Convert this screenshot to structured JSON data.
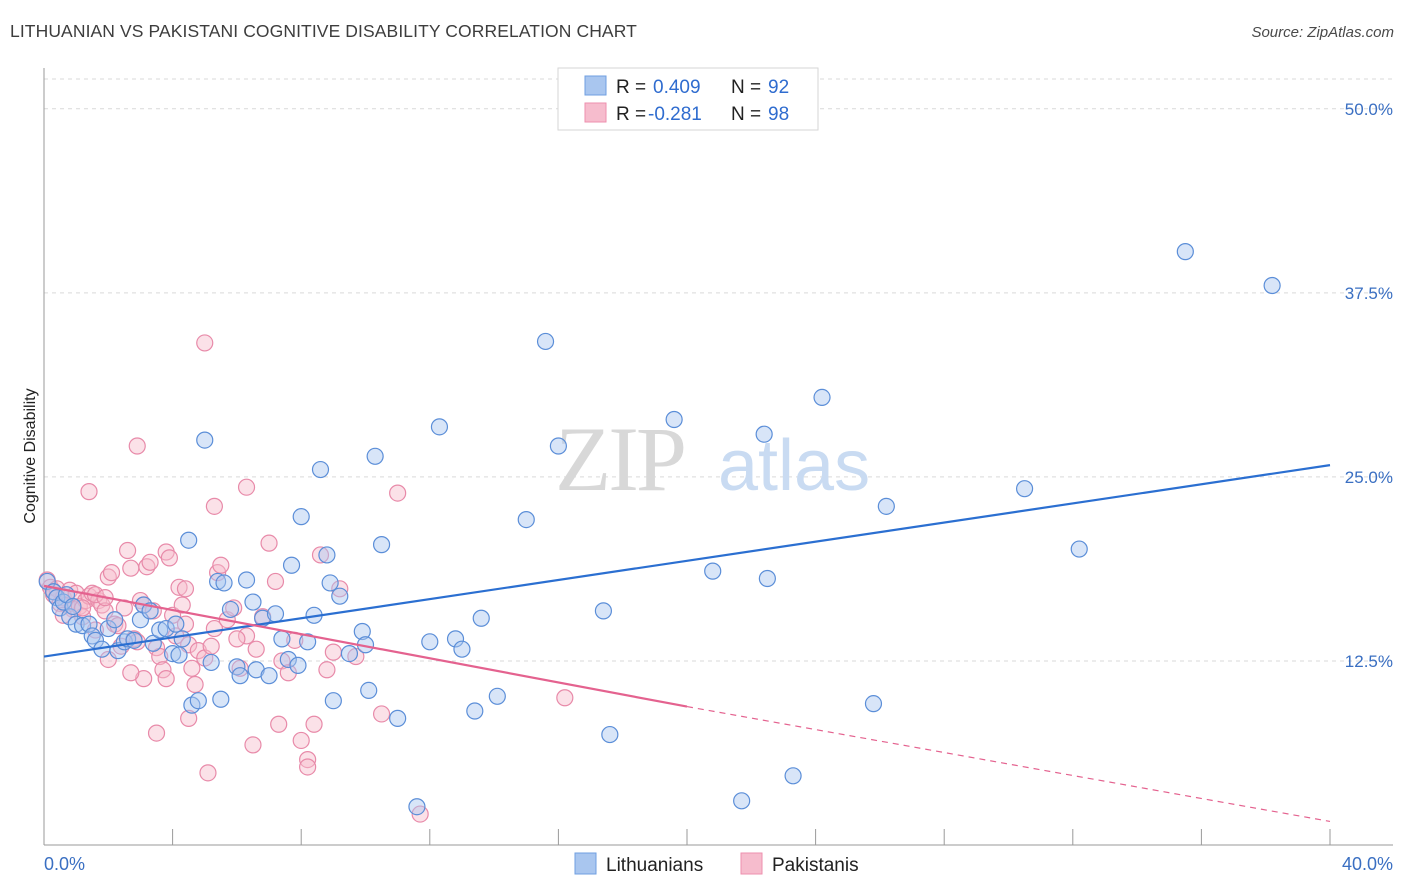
{
  "title": "LITHUANIAN VS PAKISTANI COGNITIVE DISABILITY CORRELATION CHART",
  "source": "Source: ZipAtlas.com",
  "watermark": {
    "zip": "ZIP",
    "atlas": "atlas"
  },
  "legend_top": [
    {
      "r_label": "R =",
      "r_value": "0.409",
      "n_label": "N =",
      "n_value": "92",
      "color": "#6f9fe0"
    },
    {
      "r_label": "R =",
      "r_value": "-0.281",
      "n_label": "N =",
      "n_value": "98",
      "color": "#ee8fae"
    }
  ],
  "legend_bottom": [
    {
      "label": "Lithuanians",
      "color": "#6f9fe0"
    },
    {
      "label": "Pakistanis",
      "color": "#ee8fae"
    }
  ],
  "colors": {
    "lithuanian_fill": "#a9c6ef",
    "lithuanian_stroke": "#5b8ed8",
    "lithuanian_line": "#2b6fd1",
    "pakistani_fill": "#f6bccd",
    "pakistani_stroke": "#e88aa9",
    "pakistani_line": "#e4628f",
    "grid": "#d9d9d9",
    "tick_label": "#3a6fc2"
  },
  "chart_data": {
    "type": "scatter",
    "title": "LITHUANIAN VS PAKISTANI COGNITIVE DISABILITY CORRELATION CHART",
    "xlabel": "",
    "ylabel": "Cognitive Disability",
    "xlim": [
      0,
      40
    ],
    "ylim": [
      0,
      52.5
    ],
    "x_tick_labels": [
      "0.0%",
      "40.0%"
    ],
    "y_ticks": [
      12.5,
      25.0,
      37.5,
      50.0
    ],
    "y_tick_labels": [
      "12.5%",
      "25.0%",
      "37.5%",
      "50.0%"
    ],
    "grid": "horizontal dashed",
    "legend_position": "top-center",
    "series": [
      {
        "name": "Lithuanians",
        "R": 0.409,
        "N": 92,
        "trend": {
          "x": [
            0,
            40
          ],
          "y": [
            12.8,
            25.8
          ]
        },
        "points": [
          [
            0.1,
            17.9
          ],
          [
            0.3,
            17.2
          ],
          [
            0.4,
            16.8
          ],
          [
            0.5,
            16.1
          ],
          [
            0.6,
            16.5
          ],
          [
            0.7,
            17.0
          ],
          [
            0.8,
            15.5
          ],
          [
            0.9,
            16.2
          ],
          [
            1.0,
            15.0
          ],
          [
            1.2,
            14.9
          ],
          [
            1.4,
            15.0
          ],
          [
            1.5,
            14.2
          ],
          [
            1.6,
            13.9
          ],
          [
            1.8,
            13.3
          ],
          [
            2.0,
            14.7
          ],
          [
            2.2,
            15.3
          ],
          [
            2.3,
            13.2
          ],
          [
            2.5,
            13.8
          ],
          [
            2.6,
            14.0
          ],
          [
            2.8,
            13.9
          ],
          [
            3.0,
            15.3
          ],
          [
            3.1,
            16.3
          ],
          [
            3.3,
            15.9
          ],
          [
            3.4,
            13.7
          ],
          [
            3.6,
            14.6
          ],
          [
            3.8,
            14.7
          ],
          [
            4.0,
            13.0
          ],
          [
            4.2,
            12.9
          ],
          [
            4.3,
            14.0
          ],
          [
            4.5,
            20.7
          ],
          [
            4.6,
            9.5
          ],
          [
            4.8,
            9.8
          ],
          [
            5.0,
            27.5
          ],
          [
            5.2,
            12.4
          ],
          [
            5.4,
            17.9
          ],
          [
            5.5,
            9.9
          ],
          [
            5.6,
            17.8
          ],
          [
            5.8,
            16.0
          ],
          [
            6.0,
            12.1
          ],
          [
            6.1,
            11.5
          ],
          [
            6.3,
            18.0
          ],
          [
            6.5,
            16.5
          ],
          [
            6.6,
            11.9
          ],
          [
            6.8,
            15.4
          ],
          [
            7.0,
            11.5
          ],
          [
            7.2,
            15.7
          ],
          [
            7.4,
            14.0
          ],
          [
            7.6,
            12.6
          ],
          [
            7.7,
            19.0
          ],
          [
            7.9,
            12.2
          ],
          [
            8.0,
            22.3
          ],
          [
            8.2,
            13.8
          ],
          [
            8.4,
            15.6
          ],
          [
            8.6,
            25.5
          ],
          [
            8.8,
            19.7
          ],
          [
            8.9,
            17.8
          ],
          [
            9.0,
            9.8
          ],
          [
            9.2,
            16.9
          ],
          [
            9.5,
            13.0
          ],
          [
            9.9,
            14.5
          ],
          [
            10.0,
            13.6
          ],
          [
            10.1,
            10.5
          ],
          [
            10.3,
            26.4
          ],
          [
            10.5,
            20.4
          ],
          [
            11.0,
            8.6
          ],
          [
            11.6,
            2.6
          ],
          [
            12.0,
            13.8
          ],
          [
            12.3,
            28.4
          ],
          [
            12.8,
            14.0
          ],
          [
            13.0,
            13.3
          ],
          [
            13.4,
            9.1
          ],
          [
            13.6,
            15.4
          ],
          [
            14.1,
            10.1
          ],
          [
            15.0,
            22.1
          ],
          [
            15.6,
            34.2
          ],
          [
            16.0,
            27.1
          ],
          [
            17.4,
            15.9
          ],
          [
            17.6,
            7.5
          ],
          [
            19.6,
            28.9
          ],
          [
            20.8,
            18.6
          ],
          [
            21.7,
            3.0
          ],
          [
            22.4,
            27.9
          ],
          [
            23.3,
            4.7
          ],
          [
            24.2,
            30.4
          ],
          [
            25.8,
            9.6
          ],
          [
            26.2,
            23.0
          ],
          [
            30.5,
            24.2
          ],
          [
            32.2,
            20.1
          ],
          [
            35.5,
            40.3
          ],
          [
            38.2,
            38.0
          ],
          [
            22.5,
            18.1
          ],
          [
            4.1,
            15.0
          ]
        ]
      },
      {
        "name": "Pakistanis",
        "R": -0.281,
        "N": 98,
        "trend": {
          "x": [
            0,
            20
          ],
          "y": [
            17.6,
            9.4
          ]
        },
        "trend_dashed": {
          "x": [
            20,
            40
          ],
          "y": [
            9.4,
            1.6
          ]
        },
        "points": [
          [
            0.1,
            18.0
          ],
          [
            0.2,
            17.5
          ],
          [
            0.3,
            17.0
          ],
          [
            0.4,
            17.4
          ],
          [
            0.5,
            16.4
          ],
          [
            0.6,
            16.8
          ],
          [
            0.7,
            16.3
          ],
          [
            0.8,
            17.3
          ],
          [
            0.9,
            16.0
          ],
          [
            1.0,
            17.1
          ],
          [
            1.1,
            16.2
          ],
          [
            1.2,
            15.5
          ],
          [
            1.3,
            16.6
          ],
          [
            1.4,
            16.9
          ],
          [
            1.5,
            17.1
          ],
          [
            1.6,
            14.6
          ],
          [
            1.7,
            16.6
          ],
          [
            1.8,
            16.3
          ],
          [
            1.9,
            15.9
          ],
          [
            2.0,
            18.2
          ],
          [
            2.1,
            18.5
          ],
          [
            2.2,
            15.0
          ],
          [
            2.3,
            14.9
          ],
          [
            2.4,
            13.5
          ],
          [
            2.5,
            16.1
          ],
          [
            2.6,
            20.0
          ],
          [
            2.7,
            18.8
          ],
          [
            2.8,
            14.0
          ],
          [
            2.9,
            13.8
          ],
          [
            3.0,
            16.6
          ],
          [
            3.1,
            16.3
          ],
          [
            3.2,
            18.9
          ],
          [
            3.3,
            19.2
          ],
          [
            3.4,
            15.9
          ],
          [
            3.5,
            13.4
          ],
          [
            3.6,
            12.8
          ],
          [
            3.7,
            11.9
          ],
          [
            3.8,
            19.9
          ],
          [
            3.9,
            19.5
          ],
          [
            4.0,
            15.6
          ],
          [
            4.1,
            14.2
          ],
          [
            4.2,
            17.5
          ],
          [
            4.3,
            16.3
          ],
          [
            4.4,
            15.0
          ],
          [
            4.5,
            13.6
          ],
          [
            4.6,
            12.0
          ],
          [
            4.7,
            10.9
          ],
          [
            4.8,
            13.2
          ],
          [
            5.0,
            12.7
          ],
          [
            5.1,
            4.9
          ],
          [
            5.2,
            13.5
          ],
          [
            5.3,
            14.7
          ],
          [
            5.4,
            18.5
          ],
          [
            5.5,
            19.0
          ],
          [
            5.7,
            15.3
          ],
          [
            5.9,
            16.1
          ],
          [
            6.1,
            12.0
          ],
          [
            6.3,
            14.2
          ],
          [
            6.6,
            13.3
          ],
          [
            6.8,
            15.5
          ],
          [
            7.0,
            20.5
          ],
          [
            7.2,
            17.9
          ],
          [
            7.4,
            12.5
          ],
          [
            7.6,
            11.7
          ],
          [
            7.8,
            13.9
          ],
          [
            8.0,
            7.1
          ],
          [
            8.2,
            5.8
          ],
          [
            8.4,
            8.2
          ],
          [
            8.6,
            19.7
          ],
          [
            8.8,
            11.9
          ],
          [
            9.0,
            13.1
          ],
          [
            9.2,
            17.4
          ],
          [
            1.4,
            24.0
          ],
          [
            1.6,
            17.0
          ],
          [
            2.9,
            27.1
          ],
          [
            3.1,
            11.3
          ],
          [
            3.5,
            7.6
          ],
          [
            4.5,
            8.6
          ],
          [
            5.0,
            34.1
          ],
          [
            5.3,
            23.0
          ],
          [
            6.3,
            24.3
          ],
          [
            6.5,
            6.8
          ],
          [
            7.3,
            8.2
          ],
          [
            8.2,
            5.3
          ],
          [
            9.7,
            12.8
          ],
          [
            10.5,
            8.9
          ],
          [
            11.0,
            23.9
          ],
          [
            11.7,
            2.1
          ],
          [
            16.2,
            10.0
          ],
          [
            1.2,
            16.1
          ],
          [
            0.6,
            15.6
          ],
          [
            2.0,
            12.6
          ],
          [
            2.7,
            11.7
          ],
          [
            3.8,
            11.3
          ],
          [
            4.4,
            17.4
          ],
          [
            6.0,
            14.0
          ],
          [
            0.3,
            17.2
          ],
          [
            1.9,
            16.8
          ]
        ]
      }
    ]
  }
}
